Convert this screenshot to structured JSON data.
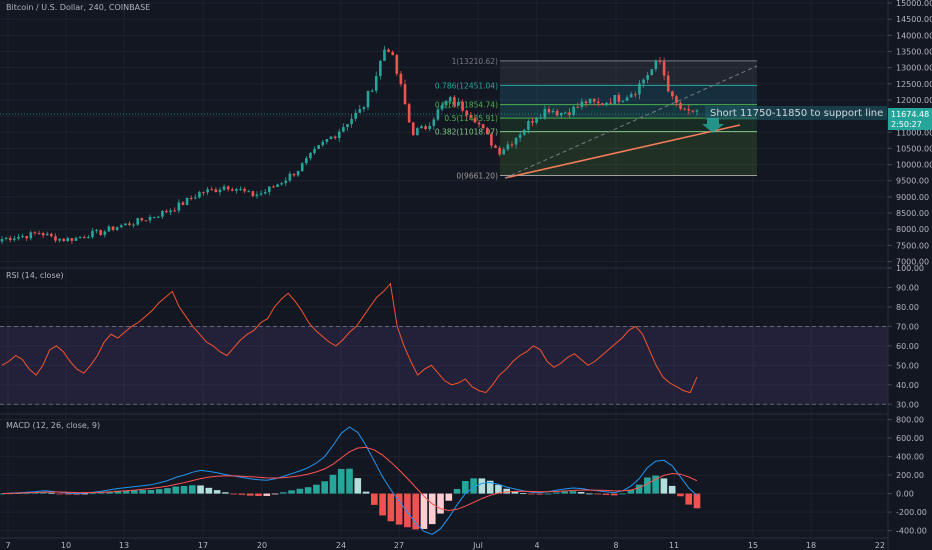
{
  "main_title": "Bitcoin / U.S. Dollar, 240, COINBASE",
  "rsi_title": "RSI (14, close)",
  "macd_title": "MACD (12, 26, close, 9)",
  "annotation": "Short 11750-11850 to support line",
  "last_price_label": "11674.48",
  "countdown_label": "2:50:27",
  "colors": {
    "background": "#131722",
    "up": "#26a69a",
    "down": "#ef5350",
    "rsi_line": "#f2542d",
    "rsi_band": "#7e57c2",
    "macd_line": "#2196f3",
    "signal_line": "#ff5252",
    "trendline": "#f57c5c",
    "annotation_bg": "#1e5c6a",
    "arrow": "#26a69a"
  },
  "chart_data": [
    {
      "type": "candlestick",
      "title": "Bitcoin / U.S. Dollar, 240, COINBASE",
      "ylim": [
        6800,
        15000
      ],
      "y_ticks": [
        "7000.00",
        "7500.00",
        "8000.00",
        "8500.00",
        "9000.00",
        "9500.00",
        "10000.00",
        "10500.00",
        "11000.00",
        "11500.00",
        "12000.00",
        "12500.00",
        "13000.00",
        "13500.00",
        "14000.00",
        "14500.00",
        "15000.00"
      ],
      "x_ticks": [
        "7",
        "10",
        "13",
        "17",
        "20",
        "24",
        "27",
        "Jul",
        "4",
        "8",
        "11",
        "15",
        "18",
        "22"
      ],
      "close_approx": [
        7700,
        7760,
        7800,
        7900,
        7750,
        7680,
        7720,
        7850,
        7900,
        8050,
        8150,
        8250,
        8380,
        8520,
        8680,
        8900,
        9150,
        9200,
        9350,
        9250,
        9050,
        9120,
        9350,
        9600,
        9900,
        10300,
        10700,
        11000,
        11400,
        11700,
        12600,
        13800,
        12600,
        11000,
        11100,
        11600,
        12000,
        11800,
        11500,
        10900,
        10400,
        10700,
        11100,
        11500,
        11750,
        11600,
        11700,
        11950,
        11850,
        12000,
        12100,
        12300,
        12800,
        13200,
        12000,
        11600,
        11674.48
      ],
      "fib_levels": [
        {
          "ratio": "1",
          "label": "1(13210.62)",
          "value": 13210.62
        },
        {
          "ratio": "0.786",
          "label": "0.786(12451.04)",
          "value": 12451.04
        },
        {
          "ratio": "0.618",
          "label": "0.618(11854.74)",
          "value": 11854.74
        },
        {
          "ratio": "0.5",
          "label": "0.5(11435.91)",
          "value": 11435.91
        },
        {
          "ratio": "0.382",
          "label": "0.382(11018.07)",
          "value": 11018.07
        },
        {
          "ratio": "0",
          "label": "0(9661.20)",
          "value": 9661.2
        }
      ],
      "last_price": 11674.48
    },
    {
      "type": "line",
      "title": "RSI (14, close)",
      "ylim": [
        25,
        100
      ],
      "y_ticks": [
        "30.00",
        "40.00",
        "50.00",
        "60.00",
        "70.00",
        "80.00",
        "90.00",
        "100.00"
      ],
      "band": [
        30,
        70
      ],
      "values": [
        50,
        52,
        55,
        53,
        48,
        45,
        50,
        58,
        60,
        57,
        52,
        48,
        46,
        50,
        55,
        62,
        66,
        64,
        67,
        70,
        72,
        75,
        78,
        82,
        85,
        88,
        80,
        75,
        70,
        66,
        62,
        60,
        57,
        55,
        59,
        63,
        66,
        68,
        72,
        74,
        80,
        84,
        87,
        83,
        78,
        72,
        68,
        65,
        62,
        60,
        63,
        67,
        70,
        75,
        80,
        85,
        88,
        92,
        70,
        60,
        52,
        45,
        48,
        50,
        46,
        42,
        40,
        41,
        43,
        39,
        37,
        36,
        40,
        45,
        48,
        52,
        55,
        57,
        60,
        58,
        52,
        49,
        51,
        54,
        56,
        53,
        50,
        52,
        55,
        58,
        61,
        64,
        68,
        70,
        66,
        58,
        50,
        44,
        41,
        39,
        37,
        36,
        44
      ]
    },
    {
      "type": "bar+line",
      "title": "MACD (12, 26, close, 9)",
      "ylim": [
        -480,
        860
      ],
      "y_ticks": [
        "-400.00",
        "-200.00",
        "0.00",
        "200.00",
        "400.00",
        "600.00",
        "800.00"
      ],
      "macd": [
        0,
        5,
        10,
        15,
        20,
        30,
        25,
        15,
        5,
        0,
        5,
        15,
        25,
        40,
        55,
        65,
        75,
        85,
        95,
        115,
        140,
        175,
        200,
        230,
        250,
        240,
        225,
        205,
        190,
        175,
        160,
        150,
        145,
        160,
        185,
        215,
        245,
        280,
        330,
        400,
        520,
        650,
        720,
        660,
        520,
        350,
        180,
        40,
        -80,
        -200,
        -320,
        -410,
        -440,
        -380,
        -260,
        -120,
        0,
        70,
        110,
        120,
        100,
        70,
        50,
        30,
        15,
        10,
        20,
        35,
        50,
        60,
        55,
        40,
        30,
        20,
        10,
        30,
        80,
        160,
        280,
        350,
        360,
        300,
        180,
        60,
        -20
      ],
      "signal": [
        0,
        2,
        5,
        8,
        11,
        15,
        17,
        17,
        15,
        12,
        11,
        12,
        14,
        18,
        24,
        31,
        38,
        47,
        56,
        67,
        81,
        99,
        118,
        140,
        162,
        178,
        188,
        191,
        191,
        188,
        182,
        176,
        170,
        168,
        171,
        180,
        193,
        211,
        234,
        267,
        317,
        384,
        451,
        493,
        499,
        472,
        416,
        339,
        255,
        164,
        67,
        -28,
        -110,
        -164,
        -183,
        -170,
        -136,
        -95,
        -54,
        -19,
        5,
        18,
        24,
        25,
        23,
        20,
        20,
        23,
        28,
        34,
        38,
        39,
        37,
        34,
        29,
        29,
        39,
        63,
        106,
        155,
        196,
        217,
        209,
        179,
        139
      ]
    }
  ]
}
